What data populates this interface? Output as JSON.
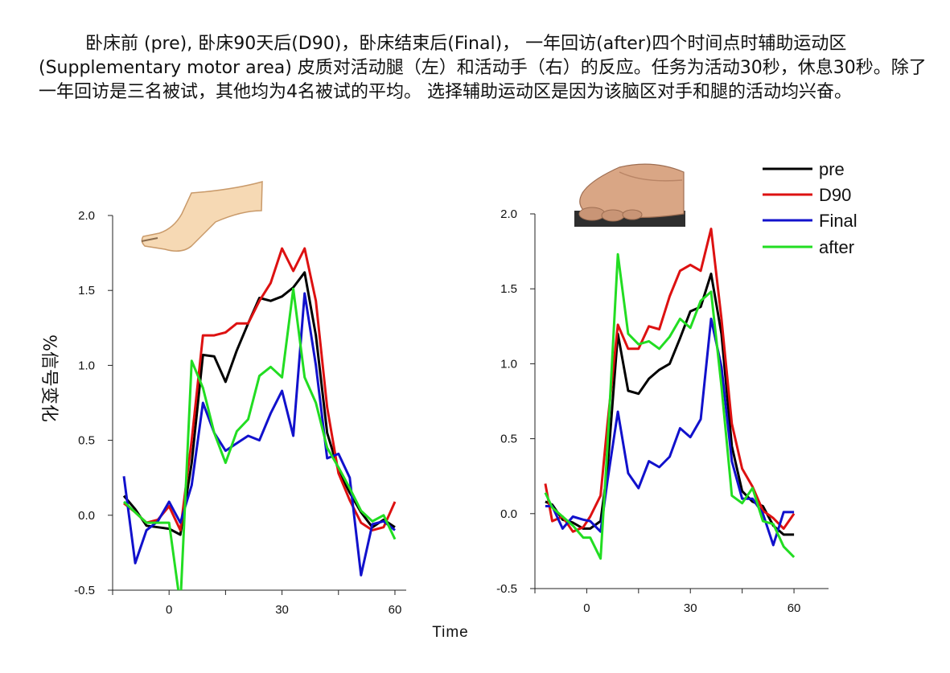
{
  "caption": "卧床前 (pre), 卧床90天后(D90)，卧床结束后(Final)， 一年回访(after)四个时间点时辅助运动区(Supplementary motor area) 皮质对活动腿（左）和活动手（右）的反应。任务为活动30秒，休息30秒。除了一年回访是三名被试，其他均为4名被试的平均。 选择辅助运动区是因为该脑区对手和腿的活动均兴奋。",
  "chart_data": [
    {
      "type": "line",
      "panel": "leg (left)",
      "title": "",
      "xlabel": "Time",
      "ylabel": "%信号变化",
      "xlim": [
        -15,
        63
      ],
      "ylim": [
        -0.5,
        2.0
      ],
      "xticks": [
        0,
        30,
        60
      ],
      "yticks": [
        -0.5,
        0.0,
        0.5,
        1.0,
        1.5,
        2.0
      ],
      "ytick_labels": [
        "-0.5",
        "0.0",
        "0.5",
        "1.0",
        "1.5",
        "2.0"
      ],
      "grid": false,
      "series": [
        {
          "name": "pre",
          "color": "#000000",
          "points": [
            [
              -12,
              0.13
            ],
            [
              -9,
              0.04
            ],
            [
              -6,
              -0.07
            ],
            [
              -3,
              -0.08
            ],
            [
              0,
              -0.09
            ],
            [
              3,
              -0.13
            ],
            [
              6,
              0.35
            ],
            [
              9,
              1.07
            ],
            [
              12,
              1.06
            ],
            [
              15,
              0.89
            ],
            [
              18,
              1.1
            ],
            [
              21,
              1.28
            ],
            [
              24,
              1.45
            ],
            [
              27,
              1.43
            ],
            [
              30,
              1.46
            ],
            [
              33,
              1.52
            ],
            [
              36,
              1.62
            ],
            [
              39,
              1.2
            ],
            [
              42,
              0.55
            ],
            [
              45,
              0.3
            ],
            [
              48,
              0.15
            ],
            [
              51,
              0.02
            ],
            [
              54,
              -0.08
            ],
            [
              57,
              -0.03
            ],
            [
              60,
              -0.08
            ]
          ]
        },
        {
          "name": "D90",
          "color": "#dd1111",
          "points": [
            [
              -12,
              0.08
            ],
            [
              -9,
              0.02
            ],
            [
              -6,
              -0.05
            ],
            [
              -3,
              -0.03
            ],
            [
              0,
              0.06
            ],
            [
              3,
              -0.1
            ],
            [
              6,
              0.5
            ],
            [
              9,
              1.2
            ],
            [
              12,
              1.2
            ],
            [
              15,
              1.22
            ],
            [
              18,
              1.28
            ],
            [
              21,
              1.28
            ],
            [
              24,
              1.43
            ],
            [
              27,
              1.55
            ],
            [
              30,
              1.78
            ],
            [
              33,
              1.63
            ],
            [
              36,
              1.78
            ],
            [
              39,
              1.43
            ],
            [
              42,
              0.72
            ],
            [
              45,
              0.28
            ],
            [
              48,
              0.1
            ],
            [
              51,
              -0.05
            ],
            [
              54,
              -0.1
            ],
            [
              57,
              -0.08
            ],
            [
              60,
              0.09
            ]
          ]
        },
        {
          "name": "Final",
          "color": "#1111cc",
          "points": [
            [
              -12,
              0.26
            ],
            [
              -9,
              -0.32
            ],
            [
              -6,
              -0.1
            ],
            [
              -3,
              -0.04
            ],
            [
              0,
              0.09
            ],
            [
              3,
              -0.05
            ],
            [
              6,
              0.2
            ],
            [
              9,
              0.75
            ],
            [
              12,
              0.55
            ],
            [
              15,
              0.43
            ],
            [
              18,
              0.48
            ],
            [
              21,
              0.53
            ],
            [
              24,
              0.5
            ],
            [
              27,
              0.68
            ],
            [
              30,
              0.83
            ],
            [
              33,
              0.53
            ],
            [
              36,
              1.48
            ],
            [
              39,
              1.0
            ],
            [
              42,
              0.38
            ],
            [
              45,
              0.41
            ],
            [
              48,
              0.25
            ],
            [
              51,
              -0.4
            ],
            [
              54,
              -0.06
            ],
            [
              57,
              -0.04
            ],
            [
              60,
              -0.1
            ]
          ]
        },
        {
          "name": "after",
          "color": "#22dd22",
          "points": [
            [
              -12,
              0.09
            ],
            [
              -9,
              0.02
            ],
            [
              -6,
              -0.05
            ],
            [
              -3,
              -0.05
            ],
            [
              0,
              -0.05
            ],
            [
              3,
              -0.6
            ],
            [
              6,
              1.03
            ],
            [
              9,
              0.85
            ],
            [
              12,
              0.55
            ],
            [
              15,
              0.35
            ],
            [
              18,
              0.56
            ],
            [
              21,
              0.64
            ],
            [
              24,
              0.93
            ],
            [
              27,
              0.99
            ],
            [
              30,
              0.92
            ],
            [
              33,
              1.51
            ],
            [
              36,
              0.92
            ],
            [
              39,
              0.75
            ],
            [
              42,
              0.45
            ],
            [
              45,
              0.32
            ],
            [
              48,
              0.18
            ],
            [
              51,
              0.03
            ],
            [
              54,
              -0.04
            ],
            [
              57,
              0.0
            ],
            [
              60,
              -0.16
            ]
          ]
        }
      ]
    },
    {
      "type": "line",
      "panel": "hand (right)",
      "title": "",
      "xlabel": "",
      "ylabel": "",
      "xlim": [
        -15,
        70
      ],
      "ylim": [
        -0.5,
        2.0
      ],
      "xticks": [
        0,
        30,
        60
      ],
      "yticks": [
        -0.5,
        0.0,
        0.5,
        1.0,
        1.5,
        2.0
      ],
      "ytick_labels": [
        "-0.5",
        "0.0",
        "0.5",
        "1.0",
        "1.5",
        "2.0"
      ],
      "grid": false,
      "legend": {
        "position": "top-right",
        "labels": [
          "pre",
          "D90",
          "Final",
          "after"
        ]
      },
      "series": [
        {
          "name": "pre",
          "color": "#000000",
          "points": [
            [
              -12,
              0.08
            ],
            [
              -10,
              0.06
            ],
            [
              -7,
              -0.04
            ],
            [
              -4,
              -0.06
            ],
            [
              -1,
              -0.1
            ],
            [
              1,
              -0.1
            ],
            [
              4,
              -0.05
            ],
            [
              6,
              0.3
            ],
            [
              9,
              1.2
            ],
            [
              12,
              0.82
            ],
            [
              15,
              0.8
            ],
            [
              18,
              0.9
            ],
            [
              21,
              0.96
            ],
            [
              24,
              1.0
            ],
            [
              27,
              1.17
            ],
            [
              30,
              1.35
            ],
            [
              33,
              1.38
            ],
            [
              36,
              1.6
            ],
            [
              39,
              1.2
            ],
            [
              42,
              0.45
            ],
            [
              45,
              0.15
            ],
            [
              48,
              0.08
            ],
            [
              51,
              0.05
            ],
            [
              54,
              -0.08
            ],
            [
              57,
              -0.14
            ],
            [
              60,
              -0.14
            ]
          ]
        },
        {
          "name": "D90",
          "color": "#dd1111",
          "points": [
            [
              -12,
              0.2
            ],
            [
              -10,
              -0.05
            ],
            [
              -7,
              -0.02
            ],
            [
              -4,
              -0.12
            ],
            [
              -1,
              -0.09
            ],
            [
              1,
              -0.02
            ],
            [
              4,
              0.12
            ],
            [
              6,
              0.6
            ],
            [
              9,
              1.26
            ],
            [
              12,
              1.1
            ],
            [
              15,
              1.1
            ],
            [
              18,
              1.25
            ],
            [
              21,
              1.23
            ],
            [
              24,
              1.45
            ],
            [
              27,
              1.62
            ],
            [
              30,
              1.66
            ],
            [
              33,
              1.62
            ],
            [
              36,
              1.9
            ],
            [
              39,
              1.3
            ],
            [
              42,
              0.6
            ],
            [
              45,
              0.3
            ],
            [
              48,
              0.18
            ],
            [
              51,
              0.02
            ],
            [
              54,
              -0.03
            ],
            [
              57,
              -0.1
            ],
            [
              60,
              0.0
            ]
          ]
        },
        {
          "name": "Final",
          "color": "#1111cc",
          "points": [
            [
              -12,
              0.05
            ],
            [
              -10,
              0.05
            ],
            [
              -7,
              -0.1
            ],
            [
              -4,
              -0.02
            ],
            [
              -1,
              -0.04
            ],
            [
              1,
              -0.05
            ],
            [
              4,
              -0.12
            ],
            [
              6,
              0.22
            ],
            [
              9,
              0.68
            ],
            [
              12,
              0.27
            ],
            [
              15,
              0.17
            ],
            [
              18,
              0.35
            ],
            [
              21,
              0.31
            ],
            [
              24,
              0.38
            ],
            [
              27,
              0.57
            ],
            [
              30,
              0.51
            ],
            [
              33,
              0.63
            ],
            [
              36,
              1.3
            ],
            [
              39,
              0.98
            ],
            [
              42,
              0.35
            ],
            [
              45,
              0.1
            ],
            [
              48,
              0.1
            ],
            [
              51,
              0.0
            ],
            [
              54,
              -0.21
            ],
            [
              57,
              0.01
            ],
            [
              60,
              0.01
            ]
          ]
        },
        {
          "name": "after",
          "color": "#22dd22",
          "points": [
            [
              -12,
              0.14
            ],
            [
              -10,
              0.04
            ],
            [
              -7,
              -0.02
            ],
            [
              -4,
              -0.08
            ],
            [
              -1,
              -0.16
            ],
            [
              1,
              -0.16
            ],
            [
              4,
              -0.3
            ],
            [
              6,
              0.45
            ],
            [
              9,
              1.73
            ],
            [
              12,
              1.2
            ],
            [
              15,
              1.13
            ],
            [
              18,
              1.15
            ],
            [
              21,
              1.1
            ],
            [
              24,
              1.18
            ],
            [
              27,
              1.3
            ],
            [
              30,
              1.24
            ],
            [
              33,
              1.42
            ],
            [
              36,
              1.48
            ],
            [
              39,
              0.85
            ],
            [
              42,
              0.12
            ],
            [
              45,
              0.07
            ],
            [
              48,
              0.17
            ],
            [
              51,
              -0.05
            ],
            [
              54,
              -0.07
            ],
            [
              57,
              -0.22
            ],
            [
              60,
              -0.29
            ]
          ]
        }
      ]
    }
  ]
}
